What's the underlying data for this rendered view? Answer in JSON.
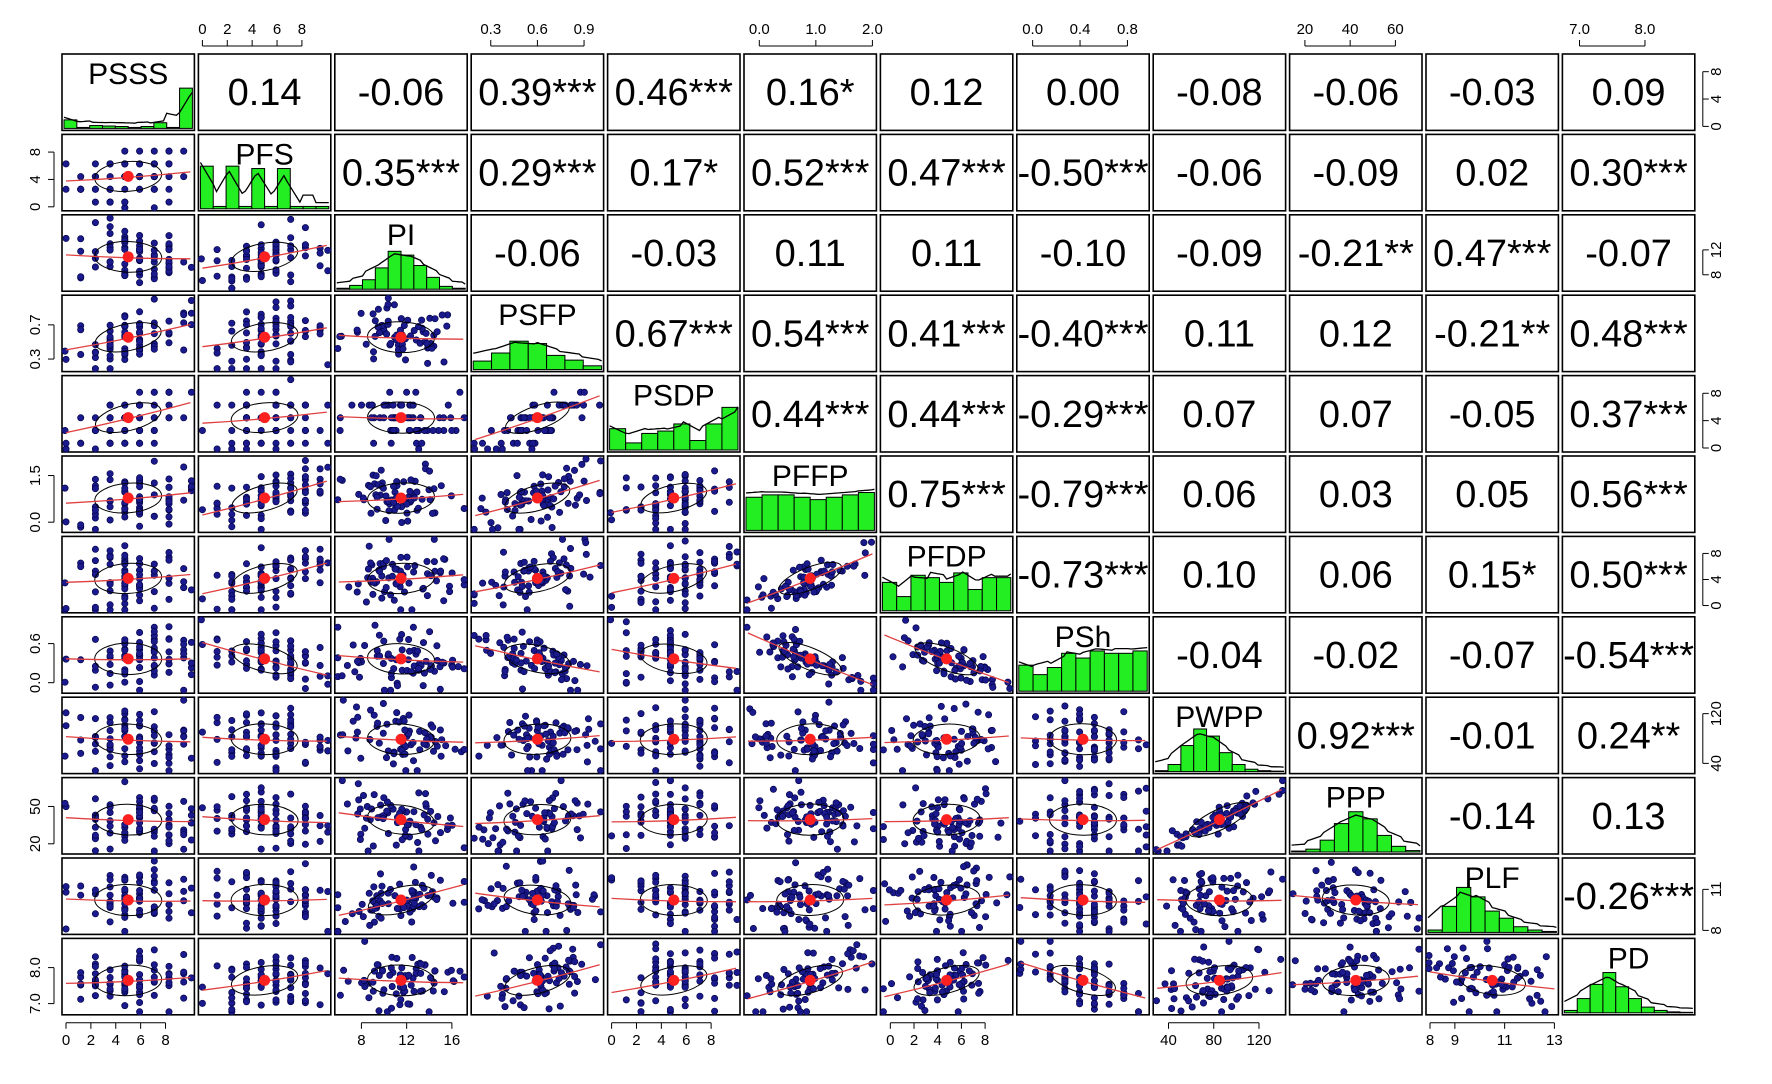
{
  "chart_data": {
    "type": "scatter",
    "variables": [
      "PSSS",
      "PFS",
      "PI",
      "PSFP",
      "PSDP",
      "PFFP",
      "PFDP",
      "PSh",
      "PWPP",
      "PPP",
      "PLF",
      "PD"
    ],
    "correlations": [
      [
        "",
        "0.14",
        "-0.06",
        "0.39***",
        "0.46***",
        "0.16*",
        "0.12",
        "0.00",
        "-0.08",
        "-0.06",
        "-0.03",
        "0.09"
      ],
      [
        "",
        "",
        "0.35***",
        "0.29***",
        "0.17*",
        "0.52***",
        "0.47***",
        "-0.50***",
        "-0.06",
        "-0.09",
        "0.02",
        "0.30***"
      ],
      [
        "",
        "",
        "",
        "-0.06",
        "-0.03",
        "0.11",
        "0.11",
        "-0.10",
        "-0.09",
        "-0.21**",
        "0.47***",
        "-0.07"
      ],
      [
        "",
        "",
        "",
        "",
        "0.67***",
        "0.54***",
        "0.41***",
        "-0.40***",
        "0.11",
        "0.12",
        "-0.21**",
        "0.48***"
      ],
      [
        "",
        "",
        "",
        "",
        "",
        "0.44***",
        "0.44***",
        "-0.29***",
        "0.07",
        "0.07",
        "-0.05",
        "0.37***"
      ],
      [
        "",
        "",
        "",
        "",
        "",
        "",
        "0.75***",
        "-0.79***",
        "0.06",
        "0.03",
        "0.05",
        "0.56***"
      ],
      [
        "",
        "",
        "",
        "",
        "",
        "",
        "",
        "-0.73***",
        "0.10",
        "0.06",
        "0.15*",
        "0.50***"
      ],
      [
        "",
        "",
        "",
        "",
        "",
        "",
        "",
        "",
        "-0.04",
        "-0.02",
        "-0.07",
        "-0.54***"
      ],
      [
        "",
        "",
        "",
        "",
        "",
        "",
        "",
        "",
        "",
        "0.92***",
        "-0.01",
        "0.24**"
      ],
      [
        "",
        "",
        "",
        "",
        "",
        "",
        "",
        "",
        "",
        "",
        "-0.14",
        "0.13"
      ],
      [
        "",
        "",
        "",
        "",
        "",
        "",
        "",
        "",
        "",
        "",
        "",
        "-0.26***"
      ],
      [
        "",
        "",
        "",
        "",
        "",
        "",
        "",
        "",
        "",
        "",
        "",
        ""
      ]
    ],
    "corr_values": [
      [
        null,
        0.14,
        -0.06,
        0.39,
        0.46,
        0.16,
        0.12,
        0.0,
        -0.08,
        -0.06,
        -0.03,
        0.09
      ],
      [
        null,
        null,
        0.35,
        0.29,
        0.17,
        0.52,
        0.47,
        -0.5,
        -0.06,
        -0.09,
        0.02,
        0.3
      ],
      [
        null,
        null,
        null,
        -0.06,
        -0.03,
        0.11,
        0.11,
        -0.1,
        -0.09,
        -0.21,
        0.47,
        -0.07
      ],
      [
        null,
        null,
        null,
        null,
        0.67,
        0.54,
        0.41,
        -0.4,
        0.11,
        0.12,
        -0.21,
        0.48
      ],
      [
        null,
        null,
        null,
        null,
        null,
        0.44,
        0.44,
        -0.29,
        0.07,
        0.07,
        -0.05,
        0.37
      ],
      [
        null,
        null,
        null,
        null,
        null,
        null,
        0.75,
        -0.79,
        0.06,
        0.03,
        0.05,
        0.56
      ],
      [
        null,
        null,
        null,
        null,
        null,
        null,
        null,
        -0.73,
        0.1,
        0.06,
        0.15,
        0.5
      ],
      [
        null,
        null,
        null,
        null,
        null,
        null,
        null,
        null,
        -0.04,
        -0.02,
        -0.07,
        -0.54
      ],
      [
        null,
        null,
        null,
        null,
        null,
        null,
        null,
        null,
        null,
        0.92,
        -0.01,
        0.24
      ],
      [
        null,
        null,
        null,
        null,
        null,
        null,
        null,
        null,
        null,
        null,
        -0.14,
        0.13
      ],
      [
        null,
        null,
        null,
        null,
        null,
        null,
        null,
        null,
        null,
        null,
        null,
        -0.26
      ],
      [
        null,
        null,
        null,
        null,
        null,
        null,
        null,
        null,
        null,
        null,
        null,
        null
      ]
    ],
    "ranges": [
      [
        0,
        10
      ],
      [
        0,
        10
      ],
      [
        6,
        17
      ],
      [
        0.2,
        1.0
      ],
      [
        0,
        10
      ],
      [
        -0.2,
        2.0
      ],
      [
        -0.5,
        10
      ],
      [
        -0.1,
        0.95
      ],
      [
        30,
        140
      ],
      [
        15,
        70
      ],
      [
        8,
        13
      ],
      [
        6.8,
        8.7
      ]
    ],
    "histograms": [
      [
        0.18,
        0.02,
        0.06,
        0.05,
        0.04,
        0.02,
        0.04,
        0.12,
        0.02,
        0.85
      ],
      [
        0.9,
        0.05,
        0.9,
        0.05,
        0.85,
        0.05,
        0.85,
        0.05,
        0.05,
        0.05
      ],
      [
        0.02,
        0.08,
        0.2,
        0.45,
        0.8,
        0.72,
        0.5,
        0.25,
        0.06,
        0.02
      ],
      [
        0.18,
        0.35,
        0.6,
        0.55,
        0.3,
        0.2,
        0.08
      ],
      [
        0.45,
        0.15,
        0.35,
        0.4,
        0.55,
        0.2,
        0.55,
        0.9
      ],
      [
        0.7,
        0.75,
        0.75,
        0.7,
        0.65,
        0.7,
        0.75,
        0.8
      ],
      [
        0.6,
        0.3,
        0.75,
        0.7,
        0.6,
        0.8,
        0.45,
        0.7,
        0.7
      ],
      [
        0.55,
        0.35,
        0.5,
        0.8,
        0.7,
        0.85,
        0.8,
        0.8,
        0.85
      ],
      [
        0.02,
        0.15,
        0.55,
        0.9,
        0.75,
        0.4,
        0.15,
        0.05,
        0.02,
        0.01
      ],
      [
        0.02,
        0.06,
        0.25,
        0.6,
        0.85,
        0.7,
        0.35,
        0.12,
        0.03
      ],
      [
        0.05,
        0.55,
        0.95,
        0.75,
        0.45,
        0.3,
        0.12,
        0.05,
        0.02
      ],
      [
        0.05,
        0.3,
        0.6,
        0.85,
        0.55,
        0.3,
        0.12,
        0.05,
        0.02,
        0.01
      ]
    ],
    "top_ticks": [
      {
        "col": 1,
        "values": [
          "0",
          "2",
          "4",
          "6",
          "8"
        ],
        "positions": [
          0,
          2,
          4,
          6,
          8
        ]
      },
      {
        "col": 3,
        "values": [
          "0.3",
          "0.6",
          "0.9"
        ],
        "positions": [
          0.3,
          0.6,
          0.9
        ]
      },
      {
        "col": 5,
        "values": [
          "0.0",
          "1.0",
          "2.0"
        ],
        "positions": [
          0.0,
          1.0,
          2.0
        ]
      },
      {
        "col": 7,
        "values": [
          "0.0",
          "0.4",
          "0.8"
        ],
        "positions": [
          0.0,
          0.4,
          0.8
        ]
      },
      {
        "col": 9,
        "values": [
          "20",
          "40",
          "60"
        ],
        "positions": [
          20,
          40,
          60
        ]
      },
      {
        "col": 11,
        "values": [
          "7.0",
          "8.0"
        ],
        "positions": [
          7.0,
          8.0
        ]
      }
    ],
    "bottom_ticks": [
      {
        "col": 0,
        "values": [
          "0",
          "2",
          "4",
          "6",
          "8"
        ],
        "positions": [
          0,
          2,
          4,
          6,
          8
        ]
      },
      {
        "col": 2,
        "values": [
          "8",
          "12",
          "16"
        ],
        "positions": [
          8,
          12,
          16
        ]
      },
      {
        "col": 4,
        "values": [
          "0",
          "2",
          "4",
          "6",
          "8"
        ],
        "positions": [
          0,
          2,
          4,
          6,
          8
        ]
      },
      {
        "col": 6,
        "values": [
          "0",
          "2",
          "4",
          "6",
          "8"
        ],
        "positions": [
          0,
          2,
          4,
          6,
          8
        ]
      },
      {
        "col": 8,
        "values": [
          "40",
          "80",
          "120"
        ],
        "positions": [
          40,
          80,
          120
        ]
      },
      {
        "col": 10,
        "values": [
          "8",
          "9",
          "11",
          "13"
        ],
        "positions": [
          8,
          9,
          11,
          13
        ]
      }
    ],
    "left_ticks": [
      {
        "row": 1,
        "values": [
          "0",
          "4",
          "8"
        ],
        "positions": [
          0,
          4,
          8
        ]
      },
      {
        "row": 3,
        "values": [
          "0.3",
          "0.7"
        ],
        "positions": [
          0.3,
          0.7
        ]
      },
      {
        "row": 5,
        "values": [
          "0.0",
          "1.5"
        ],
        "positions": [
          0.0,
          1.5
        ]
      },
      {
        "row": 7,
        "values": [
          "0.0",
          "0.6"
        ],
        "positions": [
          0.0,
          0.6
        ]
      },
      {
        "row": 9,
        "values": [
          "20",
          "50"
        ],
        "positions": [
          20,
          50
        ]
      },
      {
        "row": 11,
        "values": [
          "7.0",
          "8.0"
        ],
        "positions": [
          7.0,
          8.0
        ]
      }
    ],
    "right_ticks": [
      {
        "row": 0,
        "values": [
          "0",
          "4",
          "8"
        ],
        "positions": [
          0,
          4,
          8
        ]
      },
      {
        "row": 2,
        "values": [
          "8",
          "12"
        ],
        "positions": [
          8,
          12
        ]
      },
      {
        "row": 4,
        "values": [
          "0",
          "4",
          "8"
        ],
        "positions": [
          0,
          4,
          8
        ]
      },
      {
        "row": 6,
        "values": [
          "0",
          "4",
          "8"
        ],
        "positions": [
          0,
          4,
          8
        ]
      },
      {
        "row": 8,
        "values": [
          "40",
          "120"
        ],
        "positions": [
          40,
          120
        ]
      },
      {
        "row": 10,
        "values": [
          "8",
          "11"
        ],
        "positions": [
          8,
          11
        ]
      }
    ],
    "colors": {
      "points": "#1a1a8c",
      "point_edge": "#000044",
      "mean_point": "#ff2020",
      "smooth_line": "#e04040",
      "ellipse": "#000000",
      "histogram_fill": "#22ee22",
      "histogram_edge": "#000000",
      "density_line": "#000000"
    }
  }
}
